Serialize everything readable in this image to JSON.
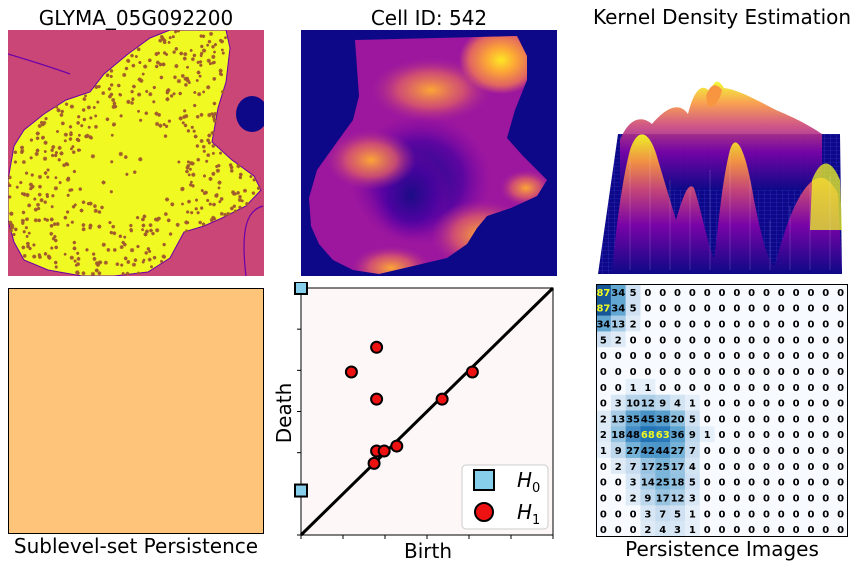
{
  "panels": {
    "gene_map_title": "GLYMA_05G092200",
    "cell_title": "Cell ID: 542",
    "kde_title": "Kernel Density Estimation",
    "sublevel_label": "Sublevel-set Persistence",
    "persistence_images_label": "Persistence Images"
  },
  "colors": {
    "background_region": "#c94677",
    "cell_fill": "#f0f921",
    "transcript_marker": "#a05a2c",
    "boundary_line": "#6a00a8",
    "nucleus": "#0d0887",
    "sublevel_fill": "#fdc47a",
    "diagram_bg": "#fdf7f7",
    "h0_color": "#87ceeb",
    "h1_color": "#ee1111"
  },
  "chart_data": [
    {
      "type": "scatter",
      "xlabel": "Birth",
      "ylabel": "Death",
      "xlim": [
        0,
        1
      ],
      "ylim": [
        0,
        1
      ],
      "diagonal": true,
      "legend": "bottom-right",
      "series": [
        {
          "name": "$H_0$",
          "label_main": "H",
          "label_sub": "0",
          "marker": "square",
          "points": [
            [
              0.0,
              0.18
            ],
            [
              0.0,
              1.0
            ]
          ]
        },
        {
          "name": "$H_1$",
          "label_main": "H",
          "label_sub": "1",
          "marker": "circle",
          "points": [
            [
              0.3,
              0.76
            ],
            [
              0.2,
              0.66
            ],
            [
              0.3,
              0.55
            ],
            [
              0.56,
              0.55
            ],
            [
              0.68,
              0.66
            ],
            [
              0.3,
              0.34
            ],
            [
              0.33,
              0.34
            ],
            [
              0.38,
              0.36
            ],
            [
              0.29,
              0.29
            ]
          ]
        }
      ]
    },
    {
      "type": "heatmap",
      "title": "Persistence Images",
      "cmap": "Blues",
      "max": 87,
      "highlight_threshold": 60,
      "rows": [
        [
          87,
          34,
          5,
          0,
          0,
          0,
          0,
          0,
          0,
          0,
          0,
          0,
          0,
          0,
          0,
          0,
          0
        ],
        [
          87,
          34,
          5,
          0,
          0,
          0,
          0,
          0,
          0,
          0,
          0,
          0,
          0,
          0,
          0,
          0,
          0
        ],
        [
          34,
          13,
          2,
          0,
          0,
          0,
          0,
          0,
          0,
          0,
          0,
          0,
          0,
          0,
          0,
          0,
          0
        ],
        [
          5,
          2,
          0,
          0,
          0,
          0,
          0,
          0,
          0,
          0,
          0,
          0,
          0,
          0,
          0,
          0,
          0
        ],
        [
          0,
          0,
          0,
          0,
          0,
          0,
          0,
          0,
          0,
          0,
          0,
          0,
          0,
          0,
          0,
          0,
          0
        ],
        [
          0,
          0,
          0,
          0,
          0,
          0,
          0,
          0,
          0,
          0,
          0,
          0,
          0,
          0,
          0,
          0,
          0
        ],
        [
          0,
          0,
          1,
          1,
          0,
          0,
          0,
          0,
          0,
          0,
          0,
          0,
          0,
          0,
          0,
          0,
          0
        ],
        [
          0,
          3,
          10,
          12,
          9,
          4,
          1,
          0,
          0,
          0,
          0,
          0,
          0,
          0,
          0,
          0,
          0
        ],
        [
          2,
          13,
          35,
          45,
          38,
          20,
          5,
          0,
          0,
          0,
          0,
          0,
          0,
          0,
          0,
          0,
          0
        ],
        [
          2,
          18,
          48,
          68,
          63,
          36,
          9,
          1,
          0,
          0,
          0,
          0,
          0,
          0,
          0,
          0,
          0
        ],
        [
          1,
          9,
          27,
          42,
          44,
          27,
          7,
          0,
          0,
          0,
          0,
          0,
          0,
          0,
          0,
          0,
          0
        ],
        [
          0,
          2,
          7,
          17,
          25,
          17,
          4,
          0,
          0,
          0,
          0,
          0,
          0,
          0,
          0,
          0,
          0
        ],
        [
          0,
          0,
          3,
          14,
          25,
          18,
          5,
          0,
          0,
          0,
          0,
          0,
          0,
          0,
          0,
          0,
          0
        ],
        [
          0,
          0,
          2,
          9,
          17,
          12,
          3,
          0,
          0,
          0,
          0,
          0,
          0,
          0,
          0,
          0,
          0
        ],
        [
          0,
          0,
          0,
          3,
          7,
          5,
          1,
          0,
          0,
          0,
          0,
          0,
          0,
          0,
          0,
          0,
          0
        ],
        [
          0,
          0,
          0,
          2,
          4,
          3,
          1,
          0,
          0,
          0,
          0,
          0,
          0,
          0,
          0,
          0,
          0
        ]
      ]
    }
  ]
}
